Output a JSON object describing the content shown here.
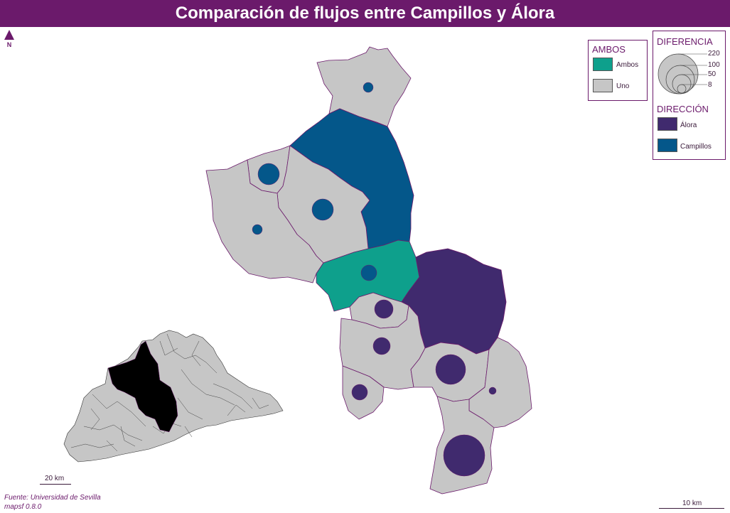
{
  "title": "Comparación de flujos entre Campillos y Álora",
  "north_label": "N",
  "legend_ambos": {
    "title": "AMBOS",
    "items": [
      {
        "label": "Ambos",
        "color": "#0ea08c"
      },
      {
        "label": "Uno",
        "color": "#c6c6c6"
      }
    ]
  },
  "legend_diferencia": {
    "title": "DIFERENCIA",
    "values": [
      "220",
      "100",
      "50",
      "8"
    ]
  },
  "legend_direccion": {
    "title": "DIRECCIÓN",
    "items": [
      {
        "label": "Álora",
        "color": "#402a6e"
      },
      {
        "label": "Campillos",
        "color": "#04578a"
      }
    ]
  },
  "scale_inset": "20 km",
  "scale_main": "10 km",
  "source": {
    "line1": "Fuente: Universidad de Sevilla",
    "line2": "mapsf 0.8.0"
  },
  "colors": {
    "title_bg": "#6b1a6b",
    "uno": "#c6c6c6",
    "ambos": "#0ea08c",
    "alora": "#402a6e",
    "campillos": "#04578a",
    "border": "#6b1a6b"
  }
}
